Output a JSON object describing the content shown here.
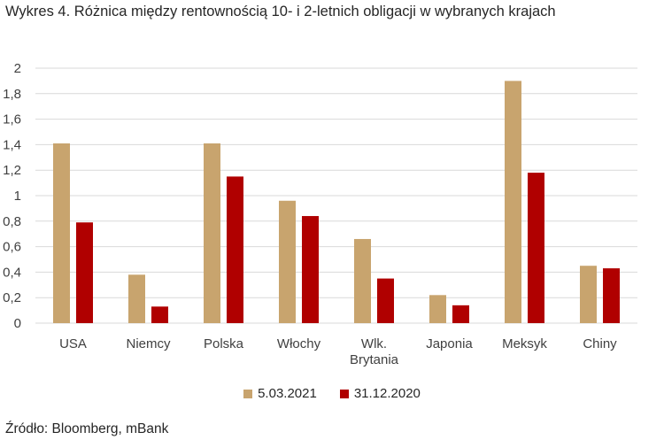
{
  "title": "Wykres 4. Różnica między rentownością 10- i 2-letnich obligacji w wybranych krajach",
  "source": "Źródło: Bloomberg, mBank",
  "colors": {
    "series1": "#c8a46e",
    "series2": "#b00000",
    "grid": "#d9d9d9"
  },
  "chart_data": {
    "type": "bar",
    "title": "Wykres 4. Różnica między rentownością 10- i 2-letnich obligacji w wybranych krajach",
    "categories": [
      "USA",
      "Niemcy",
      "Polska",
      "Włochy",
      "Wlk. Brytania",
      "Japonia",
      "Meksyk",
      "Chiny"
    ],
    "category_lines": [
      [
        "USA"
      ],
      [
        "Niemcy"
      ],
      [
        "Polska"
      ],
      [
        "Włochy"
      ],
      [
        "Wlk.",
        "Brytania"
      ],
      [
        "Japonia"
      ],
      [
        "Meksyk"
      ],
      [
        "Chiny"
      ]
    ],
    "series": [
      {
        "name": "5.03.2021",
        "values": [
          1.41,
          0.38,
          1.41,
          0.96,
          0.66,
          0.22,
          1.9,
          0.45
        ]
      },
      {
        "name": "31.12.2020",
        "values": [
          0.79,
          0.13,
          1.15,
          0.84,
          0.35,
          0.14,
          1.18,
          0.43
        ]
      }
    ],
    "ylim": [
      0,
      2
    ],
    "yticks": [
      "0",
      "0,2",
      "0,4",
      "0,6",
      "0,8",
      "1",
      "1,2",
      "1,4",
      "1,6",
      "1,8",
      "2"
    ],
    "xlabel": "",
    "ylabel": "",
    "grid": true,
    "legend": "bottom"
  }
}
